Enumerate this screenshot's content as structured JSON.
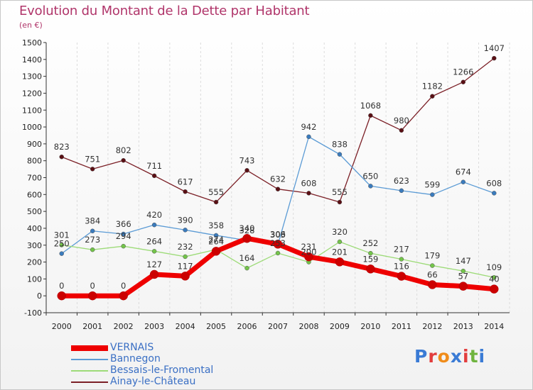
{
  "title": "Evolution du Montant de la Dette par Habitant",
  "unit": "(en €)",
  "logo": {
    "text": "Proxiti",
    "colors": [
      "#3a7bd5",
      "#e23d3d",
      "#f08c1a",
      "#3a7bd5",
      "#e23d3d",
      "#6fb43f",
      "#3a7bd5"
    ]
  },
  "chart_data": {
    "type": "line",
    "title": "Evolution du Montant de la Dette par Habitant",
    "ylabel": "(en €)",
    "xlabel": "",
    "x": [
      "2000",
      "2001",
      "2002",
      "2003",
      "2004",
      "2005",
      "2006",
      "2007",
      "2008",
      "2009",
      "2010",
      "2011",
      "2012",
      "2013",
      "2014"
    ],
    "ylim": [
      -100,
      1500
    ],
    "yticks": [
      -100,
      0,
      100,
      200,
      300,
      400,
      500,
      600,
      700,
      800,
      900,
      1000,
      1100,
      1200,
      1300,
      1400,
      1500
    ],
    "grid": "vertical dashed",
    "legend": "bottom-left",
    "series": [
      {
        "name": "Ainay-le-Château",
        "color": "#7b1f26",
        "marker": "#5a0f14",
        "width": 1.3,
        "values": [
          823,
          751,
          802,
          711,
          617,
          555,
          743,
          632,
          608,
          555,
          1068,
          980,
          1182,
          1266,
          1407
        ]
      },
      {
        "name": "Bannegon",
        "color": "#5b9bd5",
        "marker": "#3a7bbd",
        "width": 1.3,
        "values": [
          250,
          384,
          366,
          420,
          390,
          358,
          328,
          303,
          942,
          838,
          650,
          623,
          599,
          674,
          608
        ]
      },
      {
        "name": "Bessais-le-Fromental",
        "color": "#9ddb78",
        "marker": "#73c44a",
        "width": 1.3,
        "values": [
          301,
          273,
          294,
          264,
          232,
          274,
          164,
          253,
          200,
          320,
          252,
          217,
          179,
          147,
          109
        ]
      },
      {
        "name": "VERNAIS",
        "color": "#ee0000",
        "marker": "#cc0000",
        "width": 7,
        "values": [
          0,
          0,
          0,
          127,
          117,
          264,
          340,
          306,
          231,
          201,
          159,
          116,
          66,
          57,
          40
        ]
      }
    ],
    "legend_order": [
      "VERNAIS",
      "Bannegon",
      "Bessais-le-Fromental",
      "Ainay-le-Château"
    ]
  }
}
